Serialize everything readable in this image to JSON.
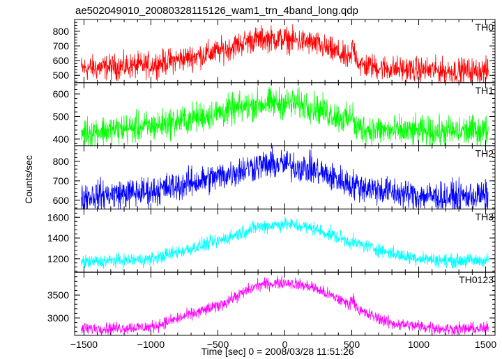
{
  "chart_data": {
    "type": "line",
    "title": "ae502049010_20080328115126_wam1_trn_4band_long.qdp",
    "xlabel": "Time [sec] 0 = 2008/03/28 11:51:26",
    "ylabel": "Counts/sec",
    "xlim": [
      -1570,
      1570
    ],
    "xticks": [
      -1500,
      -1000,
      -500,
      0,
      500,
      1000,
      1500
    ],
    "xtick_labels": [
      "−1500",
      "−1000",
      "−500",
      "0",
      "500",
      "1000",
      "1500"
    ],
    "grid": false,
    "panels": [
      {
        "name": "TH0",
        "color": "#ff0000",
        "ylim": [
          450,
          880
        ],
        "yticks": [
          500,
          600,
          700,
          800
        ],
        "profile": {
          "x": [
            -1520,
            -1000,
            -500,
            -250,
            -150,
            0,
            200,
            400,
            490,
            505,
            560,
            800,
            1200,
            1520
          ],
          "y": [
            545,
            570,
            660,
            740,
            750,
            745,
            720,
            650,
            600,
            700,
            570,
            545,
            530,
            530
          ]
        },
        "noise_amplitude": 90
      },
      {
        "name": "TH1",
        "color": "#00ff00",
        "ylim": [
          370,
          650
        ],
        "yticks": [
          400,
          500,
          600
        ],
        "profile": {
          "x": [
            -1520,
            -1000,
            -500,
            -200,
            0,
            200,
            480,
            505,
            520,
            800,
            1200,
            1520
          ],
          "y": [
            430,
            455,
            515,
            555,
            560,
            545,
            480,
            535,
            450,
            435,
            430,
            440
          ]
        },
        "noise_amplitude": 70
      },
      {
        "name": "TH2",
        "color": "#0000ff",
        "ylim": [
          555,
          880
        ],
        "yticks": [
          600,
          700,
          800
        ],
        "profile": {
          "x": [
            -1520,
            -1000,
            -500,
            -200,
            0,
            200,
            500,
            900,
            1200,
            1520
          ],
          "y": [
            620,
            645,
            720,
            780,
            785,
            760,
            680,
            630,
            615,
            625
          ]
        },
        "noise_amplitude": 80
      },
      {
        "name": "TH3",
        "color": "#00ffff",
        "ylim": [
          1070,
          1680
        ],
        "yticks": [
          1200,
          1400,
          1600
        ],
        "profile": {
          "x": [
            -1520,
            -1000,
            -500,
            -200,
            0,
            200,
            500,
            900,
            1200,
            1520
          ],
          "y": [
            1165,
            1195,
            1370,
            1510,
            1535,
            1500,
            1360,
            1220,
            1180,
            1185
          ]
        },
        "noise_amplitude": 70
      },
      {
        "name": "TH0123",
        "color": "#ff00ff",
        "ylim": [
          2620,
          4000
        ],
        "yticks": [
          3000,
          3500
        ],
        "profile": {
          "x": [
            -1520,
            -1000,
            -500,
            -200,
            0,
            200,
            480,
            505,
            560,
            800,
            1200,
            1520
          ],
          "y": [
            2760,
            2800,
            3260,
            3720,
            3780,
            3680,
            3300,
            3420,
            3150,
            2880,
            2760,
            2770
          ]
        },
        "noise_amplitude": 140
      }
    ]
  }
}
